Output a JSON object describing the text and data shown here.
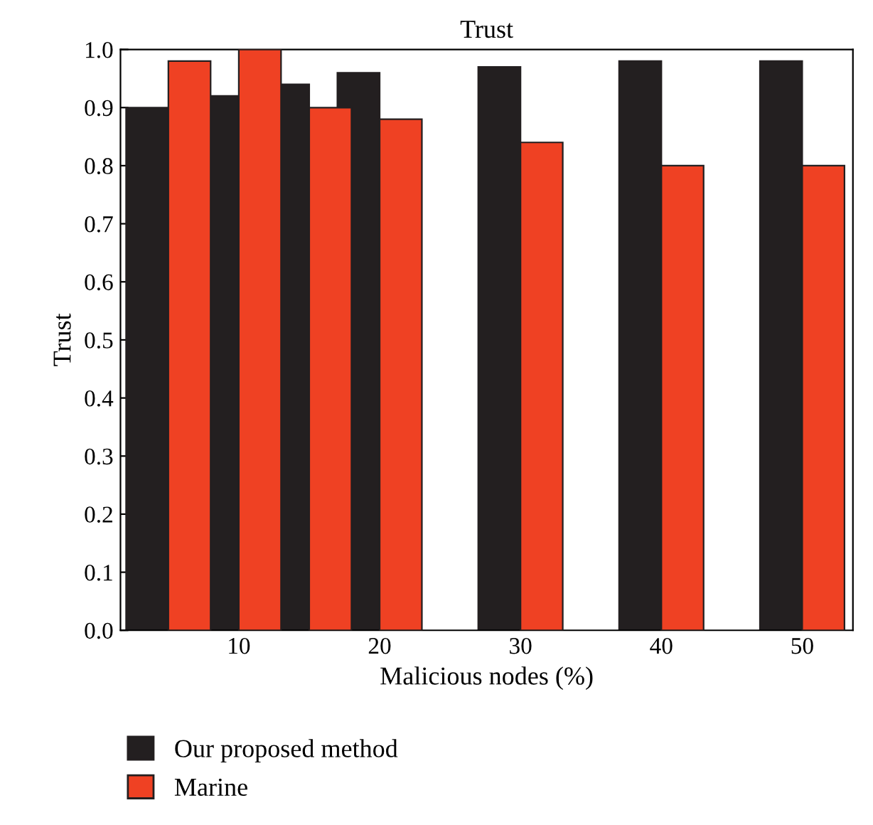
{
  "chart_data": {
    "type": "bar",
    "title": "Trust",
    "xlabel": "Malicious nodes (%)",
    "ylabel": "Trust",
    "x": [
      5,
      10,
      15,
      20,
      30,
      40,
      50
    ],
    "series": [
      {
        "name": "Our proposed method",
        "color": "#231f20",
        "values": [
          0.9,
          0.92,
          0.94,
          0.96,
          0.97,
          0.98,
          0.98
        ]
      },
      {
        "name": "Marine",
        "color": "#ef4123",
        "values": [
          0.98,
          1.0,
          0.9,
          0.88,
          0.84,
          0.8,
          0.8
        ]
      }
    ],
    "xlim": [
      1.6,
      53.6
    ],
    "xticks": [
      10,
      20,
      30,
      40,
      50
    ],
    "ylim": [
      0,
      1.0
    ],
    "yticks": [
      {
        "value": 0,
        "label": "0.0"
      },
      {
        "value": 0.1,
        "label": "0.1"
      },
      {
        "value": 0.2,
        "label": "0.2"
      },
      {
        "value": 0.3,
        "label": "0.3"
      },
      {
        "value": 0.4,
        "label": "0.4"
      },
      {
        "value": 0.5,
        "label": "0.5"
      },
      {
        "value": 0.6,
        "label": "0.6"
      },
      {
        "value": 0.7,
        "label": "0.7"
      },
      {
        "value": 0.8,
        "label": "0.8"
      },
      {
        "value": 0.9,
        "label": "0.9"
      },
      {
        "value": 1.0,
        "label": "1.0"
      }
    ],
    "grid": false,
    "legend": "bottom"
  }
}
